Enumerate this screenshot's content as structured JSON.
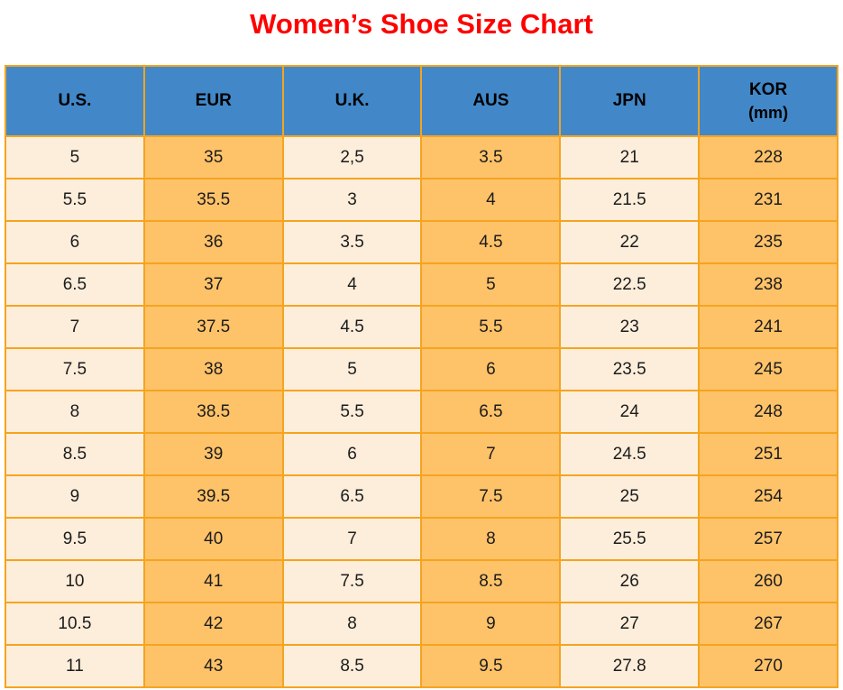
{
  "title": "Women’s Shoe Size Chart",
  "colors": {
    "title": "#fe0000",
    "header_bg": "#4288c8",
    "header_text": "#000000",
    "cell_light": "#fdeedb",
    "cell_orange": "#fec269",
    "border": "#f5a41f",
    "cell_text": "#1c1c1c",
    "background": "#ffffff"
  },
  "chart_data": {
    "type": "table",
    "title": "Women’s Shoe Size Chart",
    "legend_position": "none",
    "grid": true,
    "columns": [
      {
        "label": "U.S.",
        "sub": ""
      },
      {
        "label": "EUR",
        "sub": ""
      },
      {
        "label": "U.K.",
        "sub": ""
      },
      {
        "label": "AUS",
        "sub": ""
      },
      {
        "label": "JPN",
        "sub": ""
      },
      {
        "label": "KOR",
        "sub": "(mm)"
      }
    ],
    "rows": [
      [
        "5",
        "35",
        "2,5",
        "3.5",
        "21",
        "228"
      ],
      [
        "5.5",
        "35.5",
        "3",
        "4",
        "21.5",
        "231"
      ],
      [
        "6",
        "36",
        "3.5",
        "4.5",
        "22",
        "235"
      ],
      [
        "6.5",
        "37",
        "4",
        "5",
        "22.5",
        "238"
      ],
      [
        "7",
        "37.5",
        "4.5",
        "5.5",
        "23",
        "241"
      ],
      [
        "7.5",
        "38",
        "5",
        "6",
        "23.5",
        "245"
      ],
      [
        "8",
        "38.5",
        "5.5",
        "6.5",
        "24",
        "248"
      ],
      [
        "8.5",
        "39",
        "6",
        "7",
        "24.5",
        "251"
      ],
      [
        "9",
        "39.5",
        "6.5",
        "7.5",
        "25",
        "254"
      ],
      [
        "9.5",
        "40",
        "7",
        "8",
        "25.5",
        "257"
      ],
      [
        "10",
        "41",
        "7.5",
        "8.5",
        "26",
        "260"
      ],
      [
        "10.5",
        "42",
        "8",
        "9",
        "27",
        "267"
      ],
      [
        "11",
        "43",
        "8.5",
        "9.5",
        "27.8",
        "270"
      ]
    ]
  }
}
